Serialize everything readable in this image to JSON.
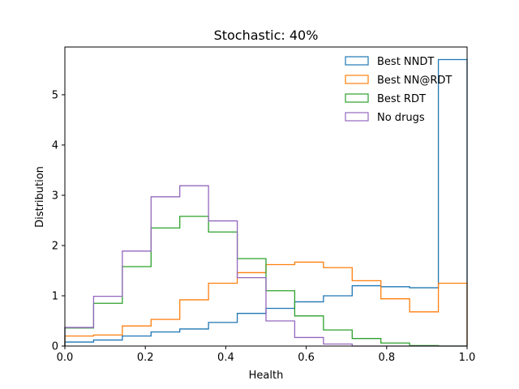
{
  "chart_data": {
    "type": "histogram-step",
    "title": "Stochastic: 40%",
    "xlabel": "Health",
    "ylabel": "Distribution",
    "xlim": [
      0.0,
      1.0
    ],
    "ylim": [
      0,
      5.95
    ],
    "xticks": [
      0.0,
      0.2,
      0.4,
      0.6,
      0.8,
      1.0
    ],
    "xtick_labels": [
      "0.0",
      "0.2",
      "0.4",
      "0.6",
      "0.8",
      "1.0"
    ],
    "yticks": [
      0,
      1,
      2,
      3,
      4,
      5
    ],
    "ytick_labels": [
      "0",
      "1",
      "2",
      "3",
      "4",
      "5"
    ],
    "legend_position": "top-right",
    "bin_edges": [
      0.0,
      0.0714,
      0.1429,
      0.2143,
      0.2857,
      0.3571,
      0.4286,
      0.5,
      0.5714,
      0.6429,
      0.7143,
      0.7857,
      0.8571,
      0.9286,
      1.0
    ],
    "series": [
      {
        "name": "Best NNDT",
        "color": "#1f77b4",
        "values": [
          0.08,
          0.12,
          0.2,
          0.28,
          0.34,
          0.47,
          0.65,
          0.75,
          0.88,
          1.0,
          1.2,
          1.18,
          1.16,
          5.7
        ]
      },
      {
        "name": "Best NN@RDT",
        "color": "#ff7f0e",
        "values": [
          0.2,
          0.22,
          0.4,
          0.53,
          0.92,
          1.25,
          1.46,
          1.62,
          1.67,
          1.56,
          1.3,
          0.94,
          0.68,
          1.25
        ]
      },
      {
        "name": "Best RDT",
        "color": "#2ca02c",
        "values": [
          0.36,
          0.85,
          1.58,
          2.35,
          2.58,
          2.27,
          1.74,
          1.1,
          0.6,
          0.32,
          0.15,
          0.06,
          0.01,
          0.0
        ]
      },
      {
        "name": "No drugs",
        "color": "#9467bd",
        "values": [
          0.37,
          0.99,
          1.89,
          2.97,
          3.19,
          2.49,
          1.36,
          0.5,
          0.17,
          0.04,
          0.0,
          0.0,
          0.0,
          0.0
        ]
      }
    ]
  }
}
